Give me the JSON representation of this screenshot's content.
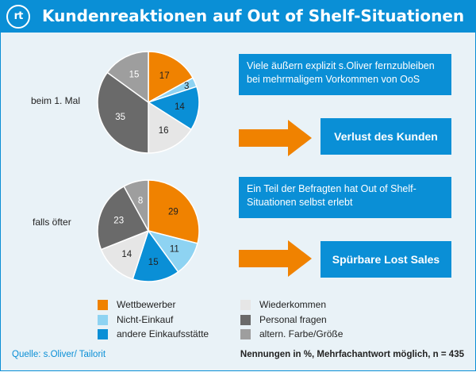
{
  "header": {
    "logo_text": "rt",
    "title": "Kundenreaktionen auf Out of Shelf-Situationen"
  },
  "colors": {
    "accent": "#0a8fd6",
    "wettbewerber": "#f08200",
    "nicht_einkauf": "#8ed3f2",
    "andere_einkaufsstaette": "#0a8fd6",
    "wiederkommen": "#e6e6e6",
    "personal_fragen": "#6a6a6a",
    "farbe_groesse": "#9e9e9e"
  },
  "info": {
    "box1": "Viele äußern explizit s.Oliver fernzubleiben bei mehrmaligem Vorkommen von OoS",
    "box2": "Ein Teil der Befragten hat Out of Shelf-Situationen selbst erlebt",
    "callout1": "Verlust des Kunden",
    "callout2": "Spürbare Lost Sales"
  },
  "chart_data": [
    {
      "type": "pie",
      "label": "beim 1. Mal",
      "slices": [
        {
          "name": "Wettbewerber",
          "value": 17
        },
        {
          "name": "Nicht-Einkauf",
          "value": 3
        },
        {
          "name": "andere Einkaufsstätte",
          "value": 14
        },
        {
          "name": "Wiederkommen",
          "value": 16
        },
        {
          "name": "Personal fragen",
          "value": 35
        },
        {
          "name": "altern. Farbe/Größe",
          "value": 15
        }
      ]
    },
    {
      "type": "pie",
      "label": "falls öfter",
      "slices": [
        {
          "name": "Wettbewerber",
          "value": 29
        },
        {
          "name": "Nicht-Einkauf",
          "value": 11
        },
        {
          "name": "andere Einkaufsstätte",
          "value": 15
        },
        {
          "name": "Wiederkommen",
          "value": 14
        },
        {
          "name": "Personal fragen",
          "value": 23
        },
        {
          "name": "altern. Farbe/Größe",
          "value": 8
        }
      ]
    }
  ],
  "legend": [
    {
      "label": "Wettbewerber",
      "color": "#f08200"
    },
    {
      "label": "Nicht-Einkauf",
      "color": "#8ed3f2"
    },
    {
      "label": "andere Einkaufsstätte",
      "color": "#0a8fd6"
    },
    {
      "label": "Wiederkommen",
      "color": "#e6e6e6"
    },
    {
      "label": "Personal fragen",
      "color": "#6a6a6a"
    },
    {
      "label": "altern. Farbe/Größe",
      "color": "#9e9e9e"
    }
  ],
  "footer": {
    "source": "Quelle: s.Oliver/ Tailorit",
    "note": "Nennungen in %, Mehrfachantwort möglich, n = 435"
  }
}
